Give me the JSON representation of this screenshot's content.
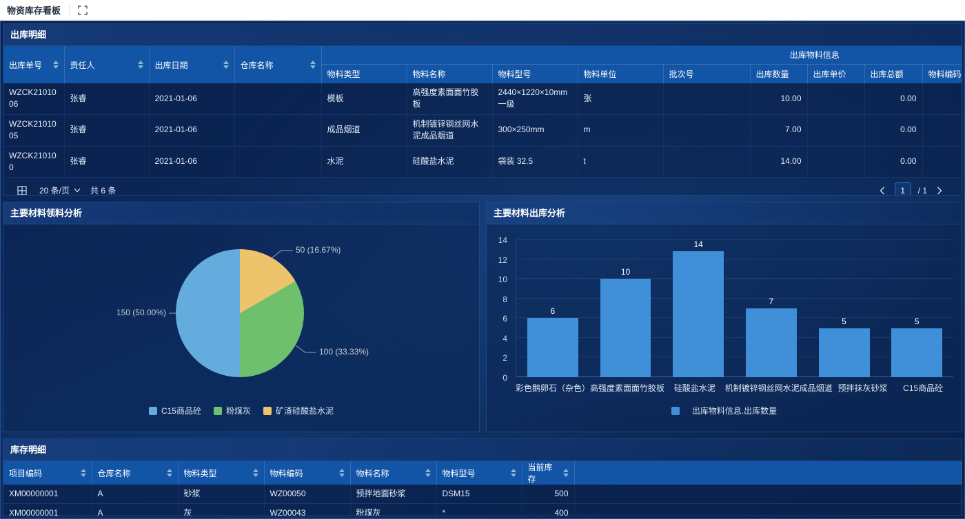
{
  "header": {
    "title": "物资库存看板"
  },
  "outbound": {
    "title": "出库明细",
    "group_header": "出库物料信息",
    "fixed_columns": [
      "出库单号",
      "责任人",
      "出库日期",
      "仓库名称"
    ],
    "material_columns": [
      "物料类型",
      "物料名称",
      "物料型号",
      "物料单位",
      "批次号",
      "出库数量",
      "出库单价",
      "出库总额",
      "物料编码"
    ],
    "rows": [
      {
        "order_no": "WZCK2101006",
        "person": "张睿",
        "date": "2021-01-06",
        "warehouse": "",
        "material_type": "模板",
        "material_name": "高强度素面面竹胶板",
        "material_model": "2440×1220×10mm 一级",
        "unit": "张",
        "batch": "",
        "qty": "10.00",
        "price": "",
        "total": "0.00",
        "code": ""
      },
      {
        "order_no": "WZCK2101005",
        "person": "张睿",
        "date": "2021-01-06",
        "warehouse": "",
        "material_type": "成品烟道",
        "material_name": "机制镀锌钢丝网水泥成品烟道",
        "material_model": "300×250mm",
        "unit": "m",
        "batch": "",
        "qty": "7.00",
        "price": "",
        "total": "0.00",
        "code": ""
      },
      {
        "order_no": "WZCK210100",
        "person": "张睿",
        "date": "2021-01-06",
        "warehouse": "",
        "material_type": "水泥",
        "material_name": "硅酸盐水泥",
        "material_model": "袋装 32.5",
        "unit": "t",
        "batch": "",
        "qty": "14.00",
        "price": "",
        "total": "0.00",
        "code": ""
      }
    ],
    "pagination": {
      "page_size": "20 条/页",
      "total_text": "共 6 条",
      "current_page": "1",
      "page_count": "/ 1"
    }
  },
  "pie_panel": {
    "title": "主要材料领料分析",
    "chart_data": {
      "type": "pie",
      "series": [
        {
          "name": "C15商品砼",
          "value": 150,
          "percent": "50.00%",
          "color": "#64acde"
        },
        {
          "name": "粉煤灰",
          "value": 100,
          "percent": "33.33%",
          "color": "#6ec06d"
        },
        {
          "name": "矿渣硅酸盐水泥",
          "value": 50,
          "percent": "16.67%",
          "color": "#edc46c"
        }
      ],
      "callout_labels": [
        "50 (16.67%)",
        "100 (33.33%)",
        "150 (50.00%)"
      ]
    }
  },
  "bar_panel": {
    "title": "主要材料出库分析",
    "chart_data": {
      "type": "bar",
      "categories": [
        "彩色鹅卵石（杂色）",
        "高强度素面面竹胶板",
        "硅酸盐水泥",
        "机制镀锌钢丝网水泥成品烟道",
        "预拌抹灰砂浆",
        "C15商品砼"
      ],
      "values": [
        6,
        10,
        14,
        7,
        5,
        5
      ],
      "y_ticks": [
        0,
        2,
        4,
        6,
        8,
        10,
        12,
        14
      ],
      "ylim": [
        0,
        14
      ],
      "legend": "出库物料信息.出库数量",
      "bar_color": "#3f90d9"
    }
  },
  "inventory": {
    "title": "库存明细",
    "columns": [
      "项目编码",
      "仓库名称",
      "物料类型",
      "物料编码",
      "物料名称",
      "物料型号",
      "当前库存"
    ],
    "rows": [
      [
        "XM00000001",
        "A",
        "砂浆",
        "WZ00050",
        "预拌地面砂浆",
        "DSM15",
        "500"
      ],
      [
        "XM00000001",
        "A",
        "灰",
        "WZ00043",
        "粉煤灰",
        "*",
        "400"
      ]
    ]
  }
}
